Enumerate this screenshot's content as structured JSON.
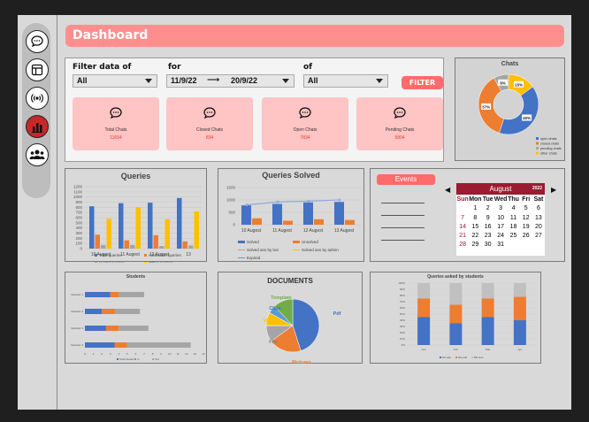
{
  "header": {
    "title": "Dashboard"
  },
  "sidebar": {
    "items": [
      {
        "name": "chat-icon",
        "active": false
      },
      {
        "name": "layout-icon",
        "active": false
      },
      {
        "name": "broadcast-icon",
        "active": false
      },
      {
        "name": "bar-chart-icon",
        "active": true
      },
      {
        "name": "users-icon",
        "active": false
      }
    ]
  },
  "filters": {
    "filter_label": "Filter data of",
    "filter_value": "All",
    "for_label": "for",
    "date_from": "11/9/22",
    "date_to": "20/9/22",
    "of_label": "of",
    "of_value": "All",
    "button": "FILTER"
  },
  "cards": [
    {
      "title": "Total Chats",
      "value": "11654"
    },
    {
      "title": "Closed Chats",
      "value": "834"
    },
    {
      "title": "Open Chats",
      "value": "7834"
    },
    {
      "title": "Pending Chats",
      "value": "5804"
    }
  ],
  "colors": {
    "blue": "#4472c4",
    "orange": "#ed7d31",
    "grey": "#a5a5a5",
    "yellow": "#ffc000",
    "red": "#9b1b30",
    "pink": "#ff8f8f"
  },
  "chart_data": [
    {
      "type": "pie",
      "title": "Chats",
      "categories": [
        "open chats",
        "closed chats",
        "pending chats",
        "other chats"
      ],
      "values": [
        40,
        37,
        8,
        15
      ],
      "labels": [
        "40%",
        "37%",
        "8%",
        "15%"
      ]
    },
    {
      "type": "bar",
      "title": "Queries",
      "categories": [
        "10 Augest",
        "11 Augest",
        "12 Augest",
        "13"
      ],
      "ylim": [
        0,
        1200
      ],
      "yticks": [
        "0",
        "100",
        "200",
        "300",
        "400",
        "500",
        "600",
        "700",
        "800",
        "900",
        "1000",
        "1100",
        "1200"
      ],
      "series": [
        {
          "name": "Total queries",
          "values": [
            820,
            880,
            890,
            980
          ]
        },
        {
          "name": "Admission queries",
          "values": [
            270,
            160,
            260,
            140
          ]
        },
        {
          "name": "Hostel queries",
          "values": [
            70,
            70,
            50,
            60
          ]
        },
        {
          "name": "Other queries",
          "values": [
            580,
            800,
            570,
            720
          ]
        }
      ]
    },
    {
      "type": "bar",
      "title": "Queries Solved",
      "categories": [
        "10 Augest",
        "11 Augest",
        "12 Augest",
        "13 Augest"
      ],
      "ylim": [
        0,
        1500
      ],
      "yticks": [
        "0",
        "500",
        "1000",
        "1500"
      ],
      "series": [
        {
          "name": "Solved",
          "values": [
            780,
            840,
            900,
            920
          ]
        },
        {
          "name": "Unsolved",
          "values": [
            260,
            160,
            220,
            190
          ]
        }
      ],
      "lines": [
        {
          "name": "Solved ans by bot",
          "values": [
            800,
            920,
            950,
            1000
          ]
        },
        {
          "name": "Solved ans by admin",
          "values": [
            0,
            0,
            0,
            0
          ]
        },
        {
          "name": "Expired",
          "values": [
            0,
            0,
            0,
            0
          ]
        }
      ]
    },
    {
      "type": "bar",
      "title": "Students",
      "orientation": "horizontal",
      "categories": [
        "Indicator 1",
        "Indicator 2",
        "Indicator 3",
        "Indicator 4"
      ],
      "xticks": [
        "0",
        "1",
        "2",
        "3",
        "4",
        "5",
        "6",
        "7",
        "8",
        "9",
        "10",
        "11",
        "12",
        "13",
        "14"
      ],
      "xlim": [
        0,
        14
      ],
      "series": [
        {
          "name": "Total students",
          "values": [
            3,
            2,
            2.5,
            3.5
          ]
        },
        {
          "name": "In",
          "values": [
            1,
            1.5,
            1.5,
            1.5
          ]
        },
        {
          "name": "Out",
          "values": [
            3,
            3,
            3.5,
            7.5
          ]
        }
      ]
    },
    {
      "type": "pie",
      "title": "DOCUMENTS",
      "categories": [
        "Pdf",
        "Pictures",
        "File",
        "Video",
        "Clips",
        "Template"
      ],
      "values": [
        45,
        20,
        10,
        8,
        5,
        12
      ]
    },
    {
      "type": "bar",
      "title": "Queries asked by students",
      "stacked": true,
      "categories": [
        "Jan",
        "Feb",
        "Mar",
        "Apr"
      ],
      "ylim": [
        0,
        100
      ],
      "yticks": [
        "0%",
        "10%",
        "20%",
        "30%",
        "40%",
        "50%",
        "60%",
        "70%",
        "80%",
        "90%",
        "100%"
      ],
      "series": [
        {
          "name": "bill sale",
          "values": [
            45,
            35,
            45,
            40
          ]
        },
        {
          "name": "bill paid",
          "values": [
            30,
            30,
            30,
            38
          ]
        },
        {
          "name": "Bill sent",
          "values": [
            25,
            35,
            25,
            22
          ]
        }
      ]
    }
  ],
  "events": {
    "label": "Events",
    "calendar": {
      "month": "August",
      "year": "2022",
      "days": [
        "Sun",
        "Mon",
        "Tue",
        "Wed",
        "Thu",
        "Fri",
        "Sat"
      ],
      "dates": [
        "",
        "1",
        "2",
        "3",
        "4",
        "5",
        "6",
        "7",
        "8",
        "9",
        "10",
        "11",
        "12",
        "13",
        "14",
        "15",
        "16",
        "17",
        "18",
        "19",
        "20",
        "21",
        "22",
        "23",
        "24",
        "25",
        "26",
        "27",
        "28",
        "29",
        "30",
        "31",
        "",
        "",
        ""
      ]
    }
  }
}
